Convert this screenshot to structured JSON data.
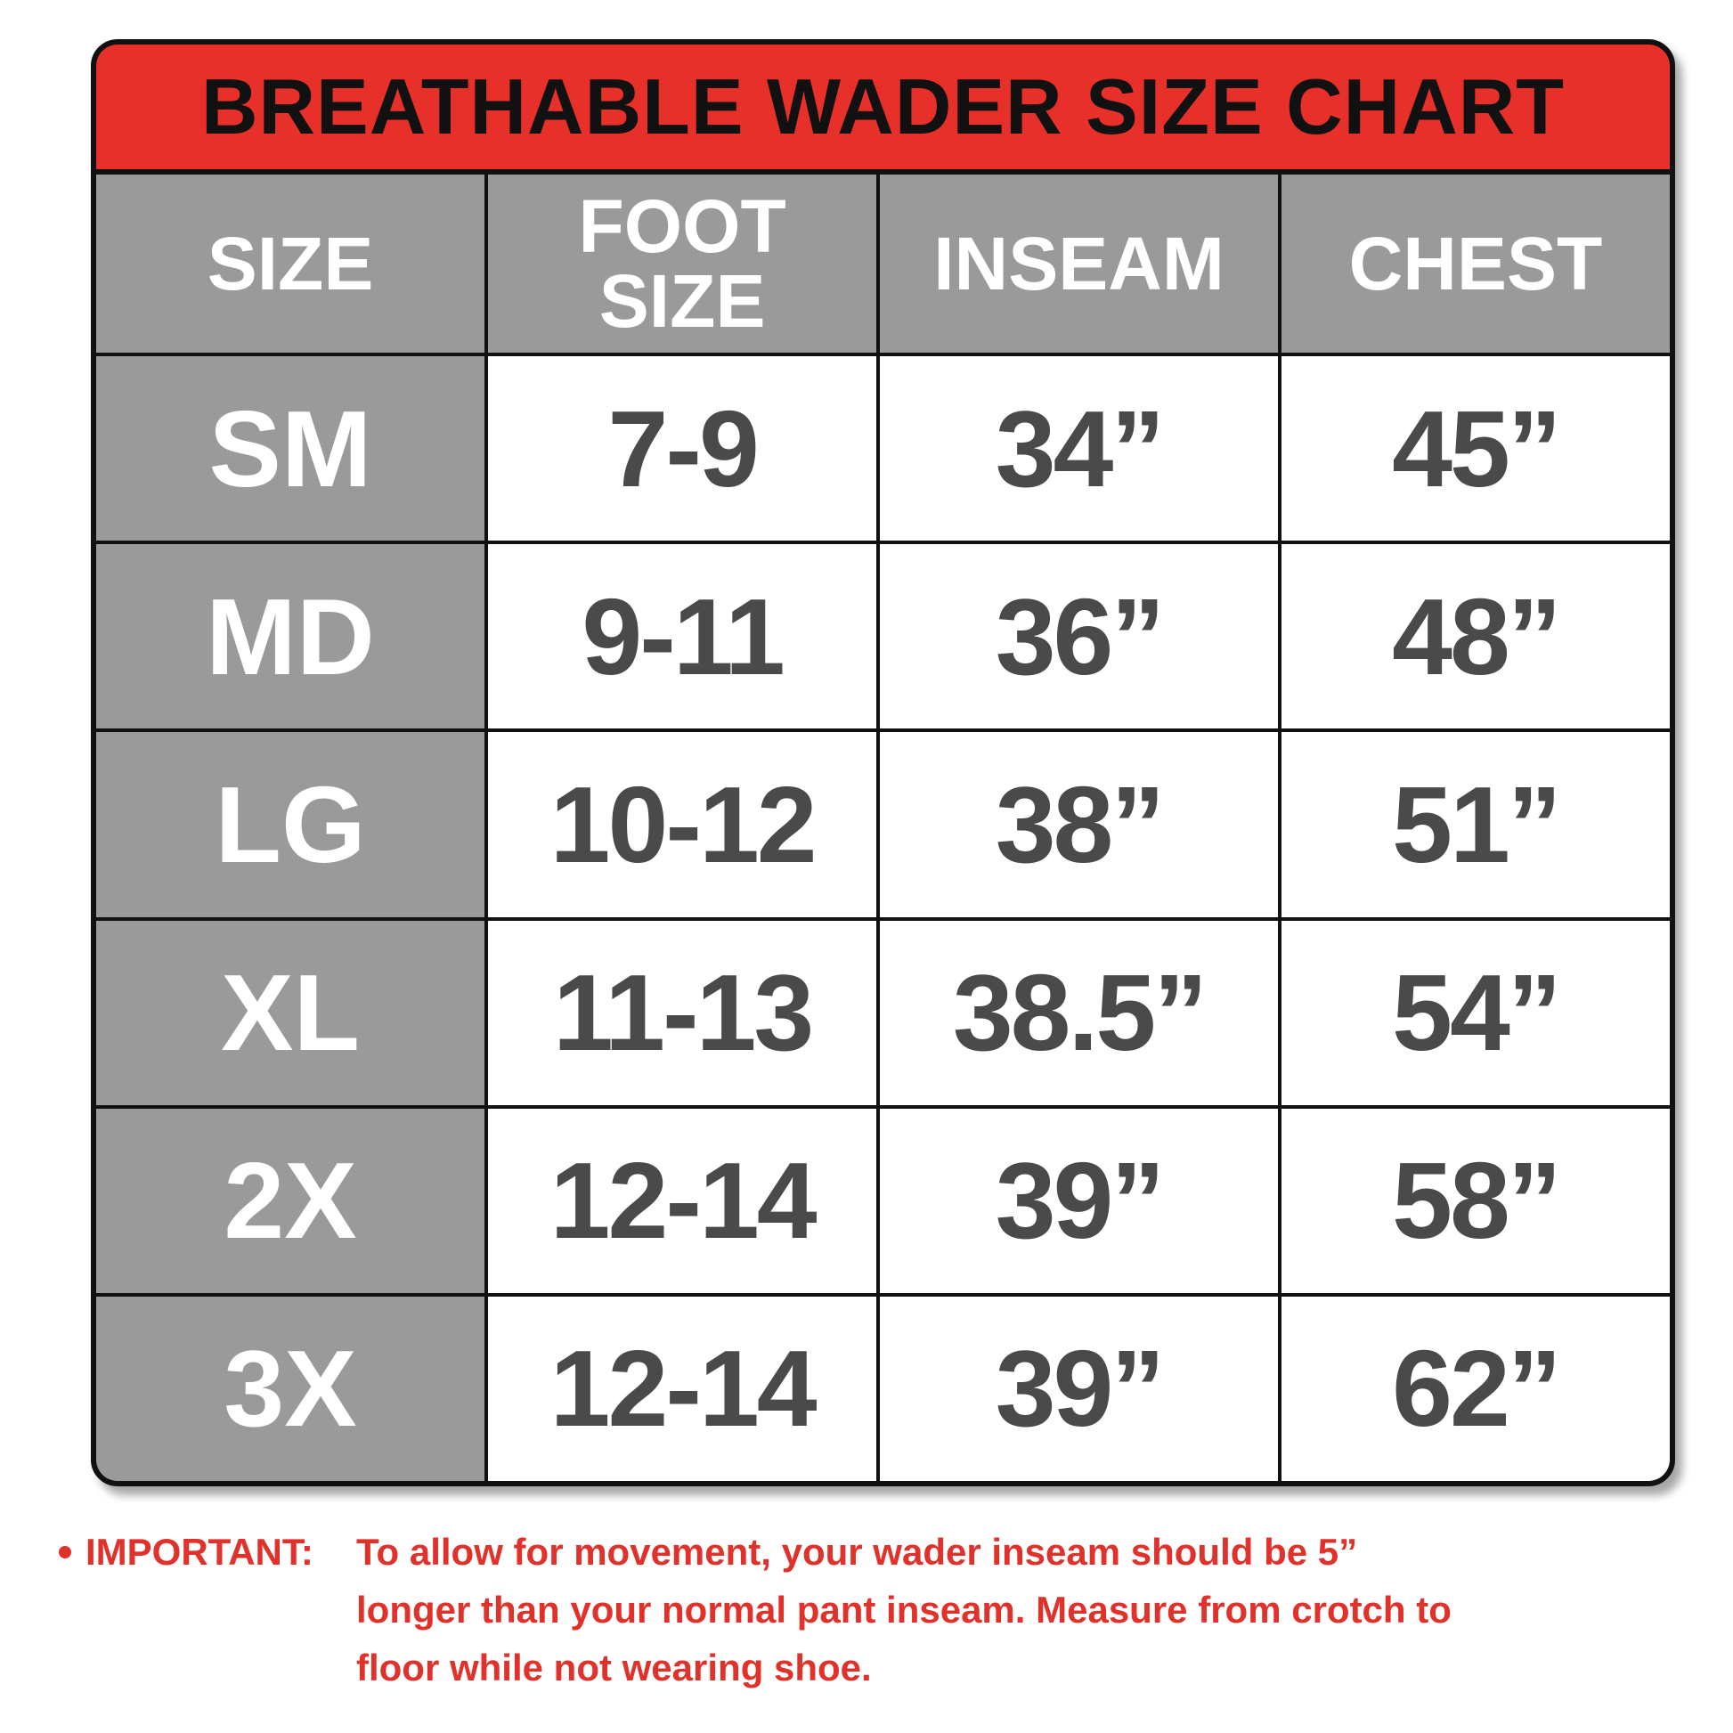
{
  "title": "BREATHABLE WADER SIZE CHART",
  "table": {
    "header": [
      "SIZE",
      "FOOT SIZE",
      "INSEAM",
      "CHEST"
    ],
    "rows": [
      [
        "SM",
        "7-9",
        "34”",
        "45”"
      ],
      [
        "MD",
        "9-11",
        "36”",
        "48”"
      ],
      [
        "LG",
        "10-12",
        "38”",
        "51”"
      ],
      [
        "XL",
        "11-13",
        "38.5”",
        "54”"
      ],
      [
        "2X",
        "12-14",
        "39”",
        "58”"
      ],
      [
        "3X",
        "12-14",
        "39”",
        "62”"
      ]
    ]
  },
  "note": {
    "label": "IMPORTANT:",
    "lines": [
      "To allow for movement, your wader inseam should be 5”",
      "longer than your normal pant inseam. Measure from crotch to",
      "floor while not wearing shoe."
    ]
  }
}
